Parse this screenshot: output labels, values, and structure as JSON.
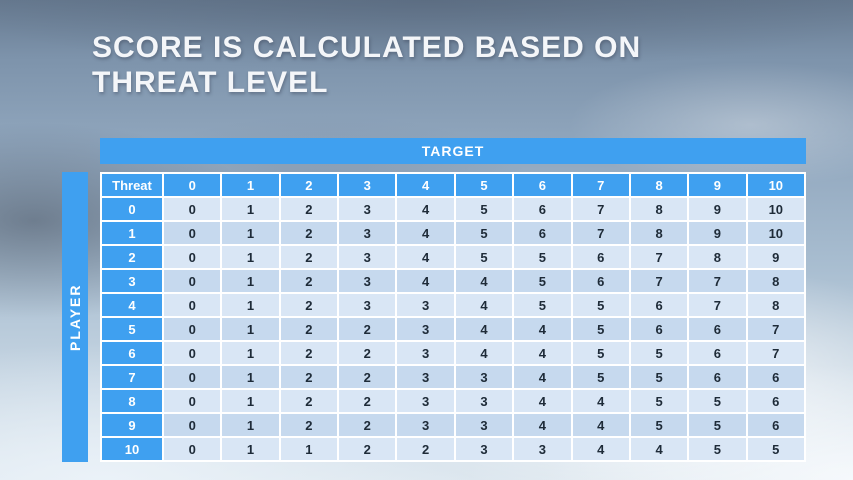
{
  "slide": {
    "title_line1": "SCORE IS CALCULATED BASED ON",
    "title_line2": "THREAT LEVEL"
  },
  "table": {
    "target_label": "TARGET",
    "player_label": "PLAYER",
    "corner_label": "Threat",
    "column_headers": [
      "0",
      "1",
      "2",
      "3",
      "4",
      "5",
      "6",
      "7",
      "8",
      "9",
      "10"
    ],
    "rows": [
      {
        "label": "0",
        "values": [
          "0",
          "1",
          "2",
          "3",
          "4",
          "5",
          "6",
          "7",
          "8",
          "9",
          "10"
        ]
      },
      {
        "label": "1",
        "values": [
          "0",
          "1",
          "2",
          "3",
          "4",
          "5",
          "6",
          "7",
          "8",
          "9",
          "10"
        ]
      },
      {
        "label": "2",
        "values": [
          "0",
          "1",
          "2",
          "3",
          "4",
          "5",
          "5",
          "6",
          "7",
          "8",
          "9"
        ]
      },
      {
        "label": "3",
        "values": [
          "0",
          "1",
          "2",
          "3",
          "4",
          "4",
          "5",
          "6",
          "7",
          "7",
          "8"
        ]
      },
      {
        "label": "4",
        "values": [
          "0",
          "1",
          "2",
          "3",
          "3",
          "4",
          "5",
          "5",
          "6",
          "7",
          "8"
        ]
      },
      {
        "label": "5",
        "values": [
          "0",
          "1",
          "2",
          "2",
          "3",
          "4",
          "4",
          "5",
          "6",
          "6",
          "7"
        ]
      },
      {
        "label": "6",
        "values": [
          "0",
          "1",
          "2",
          "2",
          "3",
          "4",
          "4",
          "5",
          "5",
          "6",
          "7"
        ]
      },
      {
        "label": "7",
        "values": [
          "0",
          "1",
          "2",
          "2",
          "3",
          "3",
          "4",
          "5",
          "5",
          "6",
          "6"
        ]
      },
      {
        "label": "8",
        "values": [
          "0",
          "1",
          "2",
          "2",
          "3",
          "3",
          "4",
          "4",
          "5",
          "5",
          "6"
        ]
      },
      {
        "label": "9",
        "values": [
          "0",
          "1",
          "2",
          "2",
          "3",
          "3",
          "4",
          "4",
          "5",
          "5",
          "6"
        ]
      },
      {
        "label": "10",
        "values": [
          "0",
          "1",
          "1",
          "2",
          "2",
          "3",
          "3",
          "4",
          "4",
          "5",
          "5"
        ]
      }
    ]
  },
  "colors": {
    "header_blue": "#3FA0F0",
    "row_light": "#D9E6F5",
    "row_dark": "#C6D9EE",
    "cell_text": "#1E2B38"
  }
}
